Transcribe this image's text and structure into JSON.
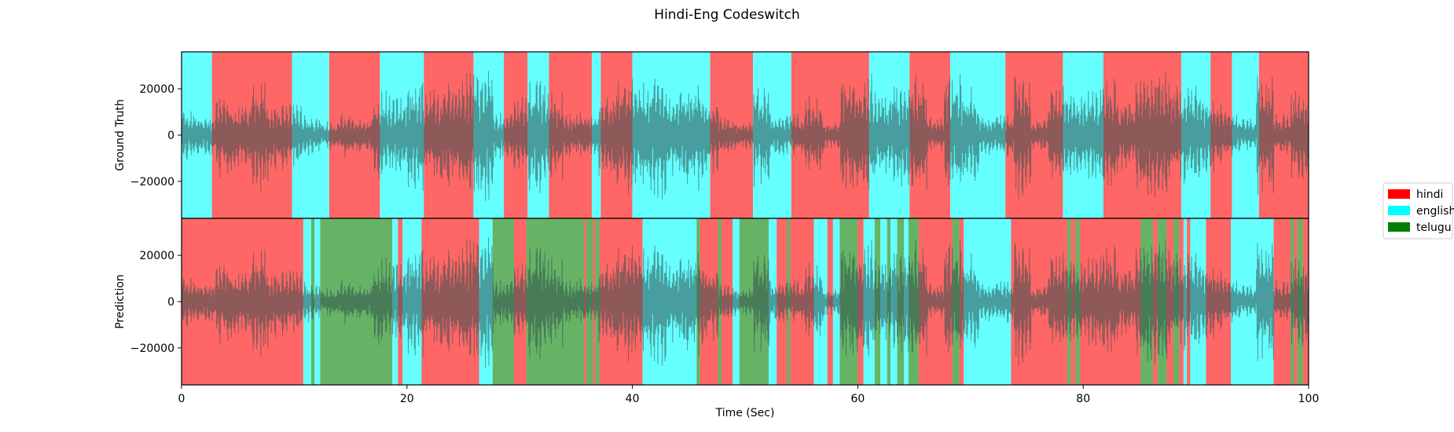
{
  "chart_data": {
    "type": "area",
    "title": "Hindi-Eng Codeswitch",
    "xlabel": "Time (Sec)",
    "xlim": [
      0,
      100
    ],
    "ylim": [
      -36000,
      36000
    ],
    "x_ticks": [
      0,
      20,
      40,
      60,
      80,
      100
    ],
    "x_tick_labels": [
      "0",
      "20",
      "40",
      "60",
      "80",
      "100"
    ],
    "y_ticks": [
      20000,
      0,
      -20000
    ],
    "y_tick_labels": [
      "20000",
      "0",
      "−20000"
    ],
    "colors": {
      "hindi": "#ff0000",
      "english": "#00ffff",
      "telugu": "#008000",
      "waveform": "#2f4f4f"
    },
    "legend": {
      "placement": "right",
      "entries": [
        {
          "label": "hindi",
          "key": "hindi"
        },
        {
          "label": "english",
          "key": "english"
        },
        {
          "label": "telugu",
          "key": "telugu"
        }
      ]
    },
    "panels": [
      {
        "ylabel": "Ground Truth",
        "segments": [
          {
            "start": 0,
            "end": 2.7,
            "label": "english"
          },
          {
            "start": 2.7,
            "end": 9.8,
            "label": "hindi"
          },
          {
            "start": 9.8,
            "end": 13.1,
            "label": "english"
          },
          {
            "start": 13.1,
            "end": 17.6,
            "label": "hindi"
          },
          {
            "start": 17.6,
            "end": 21.5,
            "label": "english"
          },
          {
            "start": 21.5,
            "end": 25.9,
            "label": "hindi"
          },
          {
            "start": 25.9,
            "end": 28.6,
            "label": "english"
          },
          {
            "start": 28.6,
            "end": 30.7,
            "label": "hindi"
          },
          {
            "start": 30.7,
            "end": 32.6,
            "label": "english"
          },
          {
            "start": 32.6,
            "end": 36.4,
            "label": "hindi"
          },
          {
            "start": 36.4,
            "end": 37.2,
            "label": "english"
          },
          {
            "start": 37.2,
            "end": 40.0,
            "label": "hindi"
          },
          {
            "start": 40.0,
            "end": 46.9,
            "label": "english"
          },
          {
            "start": 46.9,
            "end": 50.7,
            "label": "hindi"
          },
          {
            "start": 50.7,
            "end": 54.1,
            "label": "english"
          },
          {
            "start": 54.1,
            "end": 61.0,
            "label": "hindi"
          },
          {
            "start": 61.0,
            "end": 64.6,
            "label": "english"
          },
          {
            "start": 64.6,
            "end": 68.2,
            "label": "hindi"
          },
          {
            "start": 68.2,
            "end": 73.1,
            "label": "english"
          },
          {
            "start": 73.1,
            "end": 78.2,
            "label": "hindi"
          },
          {
            "start": 78.2,
            "end": 81.8,
            "label": "english"
          },
          {
            "start": 81.8,
            "end": 88.7,
            "label": "hindi"
          },
          {
            "start": 88.7,
            "end": 91.3,
            "label": "english"
          },
          {
            "start": 91.3,
            "end": 93.2,
            "label": "hindi"
          },
          {
            "start": 93.2,
            "end": 95.6,
            "label": "english"
          },
          {
            "start": 95.6,
            "end": 100,
            "label": "hindi"
          }
        ]
      },
      {
        "ylabel": "Prediction",
        "segments": [
          {
            "start": 0,
            "end": 10.8,
            "label": "hindi"
          },
          {
            "start": 10.8,
            "end": 11.5,
            "label": "english"
          },
          {
            "start": 11.5,
            "end": 11.8,
            "label": "telugu"
          },
          {
            "start": 11.8,
            "end": 12.3,
            "label": "english"
          },
          {
            "start": 12.3,
            "end": 18.7,
            "label": "telugu"
          },
          {
            "start": 18.7,
            "end": 19.2,
            "label": "english"
          },
          {
            "start": 19.2,
            "end": 19.6,
            "label": "hindi"
          },
          {
            "start": 19.6,
            "end": 21.3,
            "label": "english"
          },
          {
            "start": 21.3,
            "end": 26.4,
            "label": "hindi"
          },
          {
            "start": 26.4,
            "end": 27.6,
            "label": "english"
          },
          {
            "start": 27.6,
            "end": 29.5,
            "label": "telugu"
          },
          {
            "start": 29.5,
            "end": 30.6,
            "label": "hindi"
          },
          {
            "start": 30.6,
            "end": 35.7,
            "label": "telugu"
          },
          {
            "start": 35.7,
            "end": 35.9,
            "label": "hindi"
          },
          {
            "start": 35.9,
            "end": 36.5,
            "label": "telugu"
          },
          {
            "start": 36.5,
            "end": 36.7,
            "label": "hindi"
          },
          {
            "start": 36.7,
            "end": 37.1,
            "label": "telugu"
          },
          {
            "start": 37.1,
            "end": 40.9,
            "label": "hindi"
          },
          {
            "start": 40.9,
            "end": 45.7,
            "label": "english"
          },
          {
            "start": 45.7,
            "end": 46.0,
            "label": "telugu"
          },
          {
            "start": 46.0,
            "end": 47.6,
            "label": "hindi"
          },
          {
            "start": 47.6,
            "end": 47.9,
            "label": "telugu"
          },
          {
            "start": 47.9,
            "end": 48.9,
            "label": "hindi"
          },
          {
            "start": 48.9,
            "end": 49.5,
            "label": "english"
          },
          {
            "start": 49.5,
            "end": 52.1,
            "label": "telugu"
          },
          {
            "start": 52.1,
            "end": 52.8,
            "label": "english"
          },
          {
            "start": 52.8,
            "end": 53.7,
            "label": "hindi"
          },
          {
            "start": 53.7,
            "end": 54.0,
            "label": "telugu"
          },
          {
            "start": 54.0,
            "end": 56.1,
            "label": "hindi"
          },
          {
            "start": 56.1,
            "end": 57.3,
            "label": "english"
          },
          {
            "start": 57.3,
            "end": 57.8,
            "label": "hindi"
          },
          {
            "start": 57.8,
            "end": 58.4,
            "label": "english"
          },
          {
            "start": 58.4,
            "end": 60.0,
            "label": "telugu"
          },
          {
            "start": 60.0,
            "end": 60.5,
            "label": "hindi"
          },
          {
            "start": 60.5,
            "end": 61.5,
            "label": "english"
          },
          {
            "start": 61.5,
            "end": 62.0,
            "label": "telugu"
          },
          {
            "start": 62.0,
            "end": 62.6,
            "label": "english"
          },
          {
            "start": 62.6,
            "end": 62.9,
            "label": "telugu"
          },
          {
            "start": 62.9,
            "end": 63.5,
            "label": "english"
          },
          {
            "start": 63.5,
            "end": 64.1,
            "label": "telugu"
          },
          {
            "start": 64.1,
            "end": 64.5,
            "label": "english"
          },
          {
            "start": 64.5,
            "end": 65.4,
            "label": "telugu"
          },
          {
            "start": 65.4,
            "end": 68.4,
            "label": "hindi"
          },
          {
            "start": 68.4,
            "end": 69.0,
            "label": "telugu"
          },
          {
            "start": 69.0,
            "end": 69.4,
            "label": "hindi"
          },
          {
            "start": 69.4,
            "end": 73.6,
            "label": "english"
          },
          {
            "start": 73.6,
            "end": 78.6,
            "label": "hindi"
          },
          {
            "start": 78.6,
            "end": 78.9,
            "label": "telugu"
          },
          {
            "start": 78.9,
            "end": 79.3,
            "label": "hindi"
          },
          {
            "start": 79.3,
            "end": 79.7,
            "label": "telugu"
          },
          {
            "start": 79.7,
            "end": 85.1,
            "label": "hindi"
          },
          {
            "start": 85.1,
            "end": 86.2,
            "label": "telugu"
          },
          {
            "start": 86.2,
            "end": 86.6,
            "label": "hindi"
          },
          {
            "start": 86.6,
            "end": 87.4,
            "label": "telugu"
          },
          {
            "start": 87.4,
            "end": 88.0,
            "label": "hindi"
          },
          {
            "start": 88.0,
            "end": 88.5,
            "label": "telugu"
          },
          {
            "start": 88.5,
            "end": 88.9,
            "label": "hindi"
          },
          {
            "start": 88.9,
            "end": 89.2,
            "label": "english"
          },
          {
            "start": 89.2,
            "end": 89.5,
            "label": "hindi"
          },
          {
            "start": 89.5,
            "end": 90.9,
            "label": "english"
          },
          {
            "start": 90.9,
            "end": 93.1,
            "label": "hindi"
          },
          {
            "start": 93.1,
            "end": 93.7,
            "label": "english"
          },
          {
            "start": 93.7,
            "end": 96.9,
            "label": "english"
          },
          {
            "start": 96.9,
            "end": 98.4,
            "label": "hindi"
          },
          {
            "start": 98.4,
            "end": 98.7,
            "label": "telugu"
          },
          {
            "start": 98.7,
            "end": 99.0,
            "label": "hindi"
          },
          {
            "start": 99.0,
            "end": 99.5,
            "label": "telugu"
          },
          {
            "start": 99.5,
            "end": 100,
            "label": "hindi"
          }
        ]
      }
    ]
  }
}
